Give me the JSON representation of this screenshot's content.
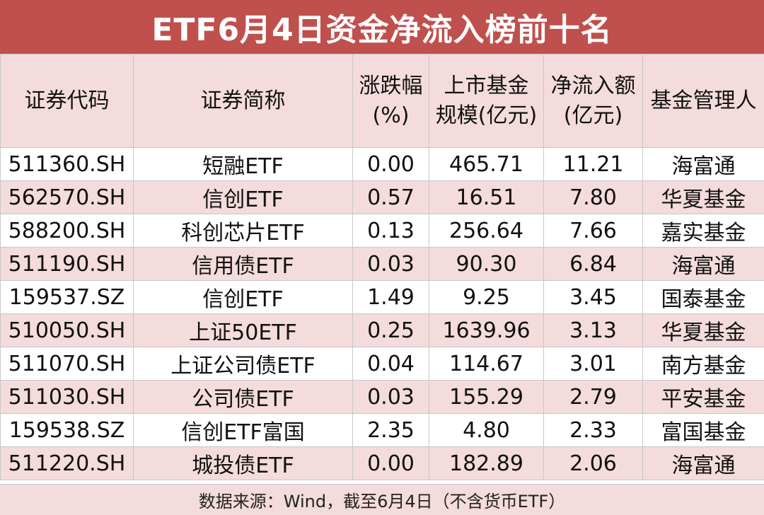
{
  "title": "ETF6月4日资金净流入榜前十名",
  "header": {
    "code": "证券代码",
    "name": "证券简称",
    "change_line1": "涨跌幅",
    "change_line2": "(%)",
    "scale_line1": "上市基金",
    "scale_line2": "规模(亿元)",
    "inflow_line1": "净流入额",
    "inflow_line2": "(亿元)",
    "manager": "基金管理人"
  },
  "rows": [
    {
      "code": "511360.SH",
      "name": "短融ETF",
      "change": "0.00",
      "scale": "465.71",
      "inflow": "11.21",
      "manager": "海富通"
    },
    {
      "code": "562570.SH",
      "name": "信创ETF",
      "change": "0.57",
      "scale": "16.51",
      "inflow": "7.80",
      "manager": "华夏基金"
    },
    {
      "code": "588200.SH",
      "name": "科创芯片ETF",
      "change": "0.13",
      "scale": "256.64",
      "inflow": "7.66",
      "manager": "嘉实基金"
    },
    {
      "code": "511190.SH",
      "name": "信用债ETF",
      "change": "0.03",
      "scale": "90.30",
      "inflow": "6.84",
      "manager": "海富通"
    },
    {
      "code": "159537.SZ",
      "name": "信创ETF",
      "change": "1.49",
      "scale": "9.25",
      "inflow": "3.45",
      "manager": "国泰基金"
    },
    {
      "code": "510050.SH",
      "name": "上证50ETF",
      "change": "0.25",
      "scale": "1639.96",
      "inflow": "3.13",
      "manager": "华夏基金"
    },
    {
      "code": "511070.SH",
      "name": "上证公司债ETF",
      "change": "0.04",
      "scale": "114.67",
      "inflow": "3.01",
      "manager": "南方基金"
    },
    {
      "code": "511030.SH",
      "name": "公司债ETF",
      "change": "0.03",
      "scale": "155.29",
      "inflow": "2.79",
      "manager": "平安基金"
    },
    {
      "code": "159538.SZ",
      "name": "信创ETF富国",
      "change": "2.35",
      "scale": "4.80",
      "inflow": "2.33",
      "manager": "富国基金"
    },
    {
      "code": "511220.SH",
      "name": "城投债ETF",
      "change": "0.00",
      "scale": "182.89",
      "inflow": "2.06",
      "manager": "海富通"
    }
  ],
  "footer": "数据来源：Wind，截至6月4日（不含货币ETF）",
  "colors": {
    "title_bg": "#c0504d",
    "stripe_pink": "#f3dcdb",
    "grid": "#c8c8c8"
  }
}
